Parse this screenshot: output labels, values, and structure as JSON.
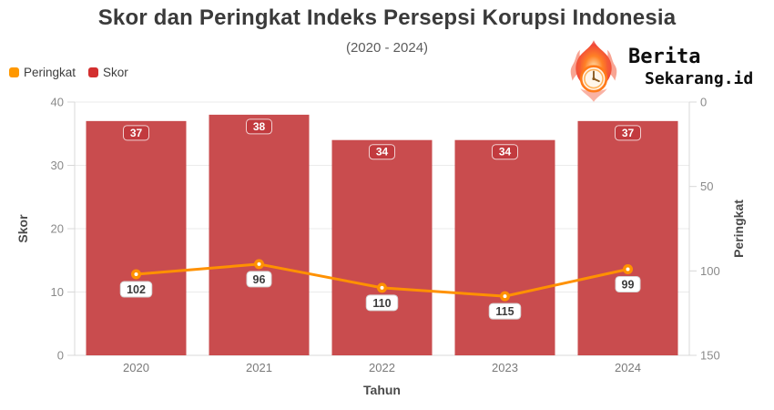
{
  "header": {
    "title": "Skor dan Peringkat Indeks Persepsi Korupsi Indonesia",
    "subtitle": "(2020 - 2024)"
  },
  "legend": {
    "items": [
      {
        "label": "Peringkat",
        "color": "#ff9800"
      },
      {
        "label": "Skor",
        "color": "#d32f2f"
      }
    ]
  },
  "logo": {
    "line1": "Berita",
    "line2": "Sekarang.id",
    "icon": "flame-clock-icon"
  },
  "chart_data": {
    "type": "bar+line",
    "categories": [
      "2020",
      "2021",
      "2022",
      "2023",
      "2024"
    ],
    "series": [
      {
        "name": "Skor",
        "type": "bar",
        "axis": "left",
        "color": "#c94c4e",
        "label_bg": "#c23a3e",
        "values": [
          37,
          38,
          34,
          34,
          37
        ]
      },
      {
        "name": "Peringkat",
        "type": "line",
        "axis": "right",
        "color": "#ff9100",
        "values": [
          102,
          96,
          110,
          115,
          99
        ]
      }
    ],
    "title": "Skor dan Peringkat Indeks Persepsi Korupsi Indonesia (2020 - 2024)",
    "xlabel": "Tahun",
    "left_axis": {
      "label": "Skor",
      "min": 0,
      "max": 40,
      "ticks": [
        0,
        10,
        20,
        30,
        40
      ]
    },
    "right_axis": {
      "label": "Peringkat",
      "min": 0,
      "max": 150,
      "ticks": [
        0,
        50,
        100,
        150
      ],
      "inverted": true
    },
    "grid": true,
    "legend_position": "top-left",
    "colors": {
      "grid_line": "#ebebeb",
      "axis_border": "#d8d8d8",
      "tick_text": "#8a8a8a",
      "axis_title": "#4a4a4a",
      "point_label_text": "#3b3b3b"
    }
  }
}
